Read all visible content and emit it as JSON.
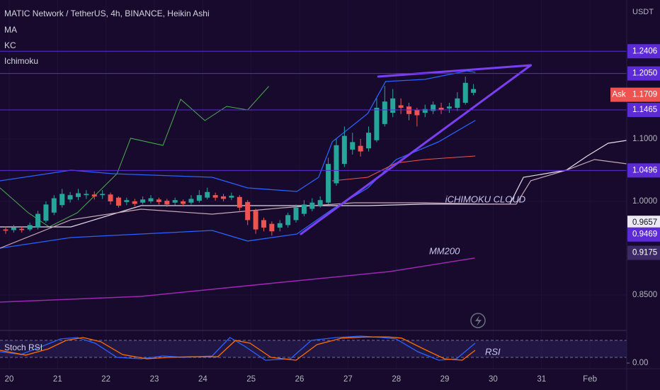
{
  "chart_data": {
    "type": "candlestick",
    "title": "MATIC Network / TetherUS, 4h, BINANCE, Heikin Ashi",
    "indicators": [
      "MA",
      "KC",
      "Ichimoku"
    ],
    "currency": "USDT",
    "up_color": "#26a69a",
    "down_color": "#ef5350",
    "xlim": [
      -0.7,
      77.7
    ],
    "ylim": [
      0.7943,
      1.3227
    ],
    "xticks": [
      {
        "value": 0.44,
        "label": "20"
      },
      {
        "value": 6.44,
        "label": "21"
      },
      {
        "value": 12.44,
        "label": "22"
      },
      {
        "value": 18.44,
        "label": "23"
      },
      {
        "value": 24.44,
        "label": "24"
      },
      {
        "value": 30.44,
        "label": "25"
      },
      {
        "value": 36.44,
        "label": "26"
      },
      {
        "value": 42.44,
        "label": "27"
      },
      {
        "value": 48.44,
        "label": "28"
      },
      {
        "value": 54.44,
        "label": "29"
      },
      {
        "value": 60.44,
        "label": "30"
      },
      {
        "value": 66.44,
        "label": "31"
      },
      {
        "value": 72.44,
        "label": "Feb"
      }
    ],
    "yticks": [
      {
        "value": 1.1,
        "label": "1.1000"
      },
      {
        "value": 1.0,
        "label": "1.0000"
      },
      {
        "value": 0.85,
        "label": "0.8500"
      }
    ],
    "open": [
      0.955,
      0.954,
      0.956,
      0.955,
      0.958,
      0.969,
      0.982,
      0.994,
      1.003,
      1.007,
      1.01,
      1.011,
      1.01,
      1.011,
      1.006,
      0.999,
      1.0,
      0.998,
      1.0,
      1.003,
      1.001,
      0.998,
      1.0,
      0.998,
      1.001,
      1.006,
      1.01,
      1.008,
      1.006,
      1.007,
      0.999,
      0.985,
      0.97,
      0.964,
      0.958,
      0.962,
      0.97,
      0.98,
      0.988,
      0.993,
      0.998,
      1.029,
      1.06,
      1.083,
      1.089,
      1.085,
      1.098,
      1.124,
      1.142,
      1.154,
      1.152,
      1.146,
      1.142,
      1.145,
      1.15,
      1.149,
      1.15,
      1.158,
      1.174
    ],
    "high": [
      0.96,
      0.962,
      0.96,
      0.966,
      0.985,
      1.0,
      1.01,
      1.02,
      1.015,
      1.02,
      1.018,
      1.016,
      1.018,
      1.014,
      1.008,
      1.006,
      1.004,
      1.008,
      1.01,
      1.006,
      1.004,
      1.006,
      1.003,
      1.01,
      1.018,
      1.022,
      1.014,
      1.012,
      1.014,
      1.01,
      1.002,
      0.988,
      0.974,
      0.968,
      0.97,
      0.982,
      0.995,
      1.002,
      1.005,
      1.008,
      1.07,
      1.1,
      1.12,
      1.11,
      1.1,
      1.12,
      1.165,
      1.185,
      1.18,
      1.165,
      1.158,
      1.15,
      1.155,
      1.16,
      1.158,
      1.158,
      1.175,
      1.2,
      1.188
    ],
    "low": [
      0.948,
      0.95,
      0.95,
      0.952,
      0.955,
      0.966,
      0.978,
      0.99,
      0.998,
      1.002,
      1.004,
      1.003,
      1.004,
      0.995,
      0.99,
      0.994,
      0.992,
      0.995,
      0.997,
      0.995,
      0.991,
      0.994,
      0.992,
      0.995,
      0.998,
      1.003,
      1.001,
      1.0,
      1.002,
      0.985,
      0.962,
      0.948,
      0.952,
      0.945,
      0.952,
      0.958,
      0.966,
      0.976,
      0.984,
      0.99,
      0.995,
      1.025,
      1.055,
      1.075,
      1.072,
      1.08,
      1.095,
      1.12,
      1.135,
      1.14,
      1.13,
      1.12,
      1.135,
      1.14,
      1.14,
      1.142,
      1.145,
      1.155,
      1.17
    ],
    "close": [
      0.953,
      0.958,
      0.954,
      0.962,
      0.98,
      0.995,
      1.005,
      1.012,
      1.01,
      1.013,
      1.012,
      1.008,
      1.012,
      1.0,
      0.993,
      1.002,
      0.996,
      1.003,
      1.005,
      0.999,
      0.995,
      1.002,
      0.996,
      1.004,
      1.01,
      1.015,
      1.006,
      1.004,
      1.009,
      0.99,
      0.97,
      0.955,
      0.958,
      0.952,
      0.965,
      0.978,
      0.99,
      0.995,
      0.998,
      1.002,
      1.06,
      1.09,
      1.105,
      1.095,
      1.08,
      1.11,
      1.15,
      1.16,
      1.165,
      1.15,
      1.14,
      1.138,
      1.148,
      1.155,
      1.147,
      1.152,
      1.165,
      1.19,
      1.18
    ],
    "lines": [
      {
        "color": "#4caf50",
        "width": 1,
        "x": [
          -0.7,
          2.8,
          5.4,
          8.9,
          13.8,
          15.5,
          19.5,
          21.7,
          24.7,
          27.4,
          30.0,
          32.6
        ],
        "values": [
          1.0216,
          0.9818,
          0.9591,
          0.9818,
          1.0443,
          1.1011,
          1.0898,
          1.1636,
          1.1295,
          1.1523,
          1.1466,
          1.1841
        ]
      },
      {
        "color": "#2962ff",
        "width": 1.3,
        "x": [
          -0.7,
          8.1,
          13.3,
          25.6,
          30.0,
          36.1,
          38.8,
          40.5,
          44.9,
          47.1,
          52.0,
          57.2,
          58.2
        ],
        "values": [
          1.0329,
          1.05,
          1.0443,
          1.0386,
          1.0216,
          1.0159,
          1.0386,
          1.0955,
          1.1409,
          1.192,
          1.1955,
          1.2091,
          1.2068
        ]
      },
      {
        "color": "#2962ff",
        "width": 1.3,
        "x": [
          -0.7,
          8.1,
          16.8,
          25.6,
          30.0,
          36.1,
          40.5,
          44.9,
          48.4,
          53.7,
          58.2
        ],
        "values": [
          0.925,
          0.942,
          0.9477,
          0.9534,
          0.9364,
          0.9477,
          0.9875,
          1.0216,
          1.067,
          1.0955,
          1.1295
        ]
      },
      {
        "color": "#ef5350",
        "width": 1,
        "x": [
          40.5,
          44.9,
          48.4,
          51.9,
          58.2
        ],
        "values": [
          1.0329,
          1.0386,
          1.0614,
          1.067,
          1.0727
        ]
      },
      {
        "color": "#e0dce8",
        "width": 1.2,
        "x": [
          -0.7,
          8.1,
          16.8,
          29.1,
          36.1,
          44.9,
          51.9,
          62.5,
          64.2,
          69.5,
          72.1,
          74.7,
          77.0
        ],
        "values": [
          0.9591,
          0.9591,
          0.9932,
          0.9932,
          0.9932,
          0.9932,
          0.9955,
          0.9955,
          1.0386,
          1.05,
          1.0727,
          1.0932,
          1.0977
        ]
      },
      {
        "color": "#c7a7b5",
        "width": 1.2,
        "x": [
          -0.7,
          8.1,
          16.8,
          25.6,
          34.4,
          43.2,
          51.9,
          60.7,
          63.3,
          65.1,
          69.5,
          73.0,
          77.0
        ],
        "values": [
          0.925,
          0.9705,
          0.9875,
          0.9795,
          0.9898,
          0.9977,
          0.9977,
          0.9955,
          0.9955,
          1.033,
          1.05,
          1.067,
          1.0602
        ]
      },
      {
        "color": "#9c27b0",
        "width": 1.5,
        "x": [
          -0.7,
          16.8,
          34.4,
          47.6,
          58.1
        ],
        "values": [
          0.8386,
          0.8477,
          0.8705,
          0.8875,
          0.9091
        ]
      },
      {
        "color": "#7b3ff2",
        "width": 3,
        "x": [
          46.2,
          65.1
        ],
        "values": [
          1.2,
          1.2182
        ]
      },
      {
        "color": "#7b3ff2",
        "width": 3,
        "x": [
          36.6,
          65.1
        ],
        "values": [
          0.9477,
          1.2182
        ]
      }
    ],
    "price_labels": [
      {
        "value": 1.2406,
        "color": "#5c2bd6",
        "level": true
      },
      {
        "value": 1.205,
        "label": "1.2050",
        "color": "#5c2bd6",
        "level": true
      },
      {
        "value": 1.1709,
        "color": "#ef5350"
      },
      {
        "value": 1.1465,
        "color": "#5c2bd6",
        "level": true
      },
      {
        "value": 1.0496,
        "color": "#5c2bd6",
        "level": true
      },
      {
        "value": 0.9657,
        "color": "#ece9f2"
      },
      {
        "value": 0.9469,
        "color": "#5c2bd6"
      },
      {
        "value": 0.9175,
        "color": "#3b2a66"
      }
    ],
    "ask_label": "Ask",
    "annotations": [
      {
        "text": "iCHIMOKU CLOUD",
        "x": 54.5,
        "y": 1.0023
      },
      {
        "text": "MM200",
        "x": 52.5,
        "y": 0.9193
      }
    ],
    "stoch": {
      "title": "Stoch RSI",
      "label": "RSI",
      "ylim": [
        0,
        100
      ],
      "bands": [
        20,
        80
      ],
      "yticks": [
        {
          "value": 0,
          "label": "0.00"
        }
      ],
      "series": [
        {
          "color": "#2962ff",
          "x": [
            -0.7,
            1.9,
            4.6,
            6.8,
            8.9,
            11.1,
            13.8,
            16.8,
            19.5,
            22.1,
            25.6,
            27.8,
            29.6,
            32.2,
            35.3,
            37.9,
            41.0,
            44.0,
            46.7,
            48.4,
            51.1,
            53.7,
            55.9,
            58.2
          ],
          "values": [
            40,
            30,
            60,
            85,
            90,
            70,
            20,
            15,
            25,
            20,
            25,
            90,
            60,
            10,
            15,
            80,
            90,
            95,
            90,
            85,
            40,
            10,
            15,
            70
          ]
        },
        {
          "color": "#ff6d00",
          "x": [
            -0.7,
            2.5,
            5.3,
            7.5,
            9.6,
            11.8,
            14.5,
            17.5,
            20.2,
            22.8,
            26.3,
            28.5,
            30.3,
            32.9,
            36.0,
            38.6,
            41.7,
            44.7,
            47.4,
            49.1,
            51.8,
            54.4,
            56.6,
            58.2
          ],
          "values": [
            45,
            28,
            50,
            80,
            90,
            75,
            30,
            15,
            20,
            22,
            22,
            80,
            70,
            20,
            10,
            65,
            88,
            92,
            92,
            88,
            50,
            15,
            10,
            45
          ]
        }
      ]
    }
  }
}
